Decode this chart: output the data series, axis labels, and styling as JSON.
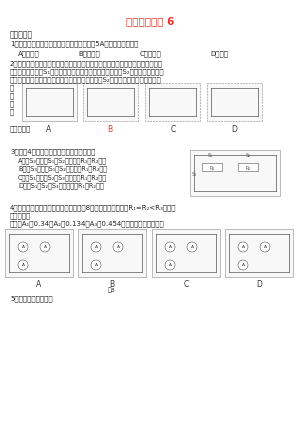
{
  "title": "周周清考试题 6",
  "title_color": "#e8352a",
  "bg_color": "#ffffff",
  "text_color": "#333333",
  "figsize": [
    3.0,
    4.24
  ],
  "dpi": 100,
  "section1": "一、选择题",
  "q1": "1．家用电器正常工作时，通过的电流大约为5A，该用电器可能是",
  "q1_A": "A．电视机",
  "q1_B": "B．白炽灯",
  "q1_C": "C．洗衣机",
  "q1_D": "D．空调",
  "q2_l1": "2．为保证司乘人员的安全，轿车上装有安全带未系提示系统，当乘客坐在座椅上",
  "q2_l2": "时，座椅下的开关S₁闭合，若未系安全带（安全带控制开关S₂断开）仪表盘上的",
  "q2_l3": "指示灯持亮起，为系上安全带时，安全带控制开关S₂闭合，指示灯熄灭，下列电",
  "q2_l4_left": "路\n图\n设\n计",
  "q2_best": "最合理的是",
  "q2_B_color": "#e8352a",
  "q3_l1": "3．如图4所示的电路中，下列说法正确的是",
  "q3_A": "A．当S₃断开、S₁、S₂闭合时，R₁和R₂并联",
  "q3_B": "B．当S₃闭合、S₁、S₂断开时，R₁和R₂并联",
  "q3_C": "C．当S₁断开、S₂、S₃闭合时，R₁和R₂串联",
  "q3_D": "D．当S₁、S₂、S₃都闭合时，R₁和R₂串联",
  "q4_l1": "4．在探究电路的电流规律实验时用了图8中的某个电路，已知R₁=R₂<R₃，电流",
  "q4_l2": "表的读数分",
  "q4_l3": "别是：A₁为0.34、A₂为0.134、A₃为0.454，测量时的电路图应是",
  "q5": "5、下列电路正确的是"
}
